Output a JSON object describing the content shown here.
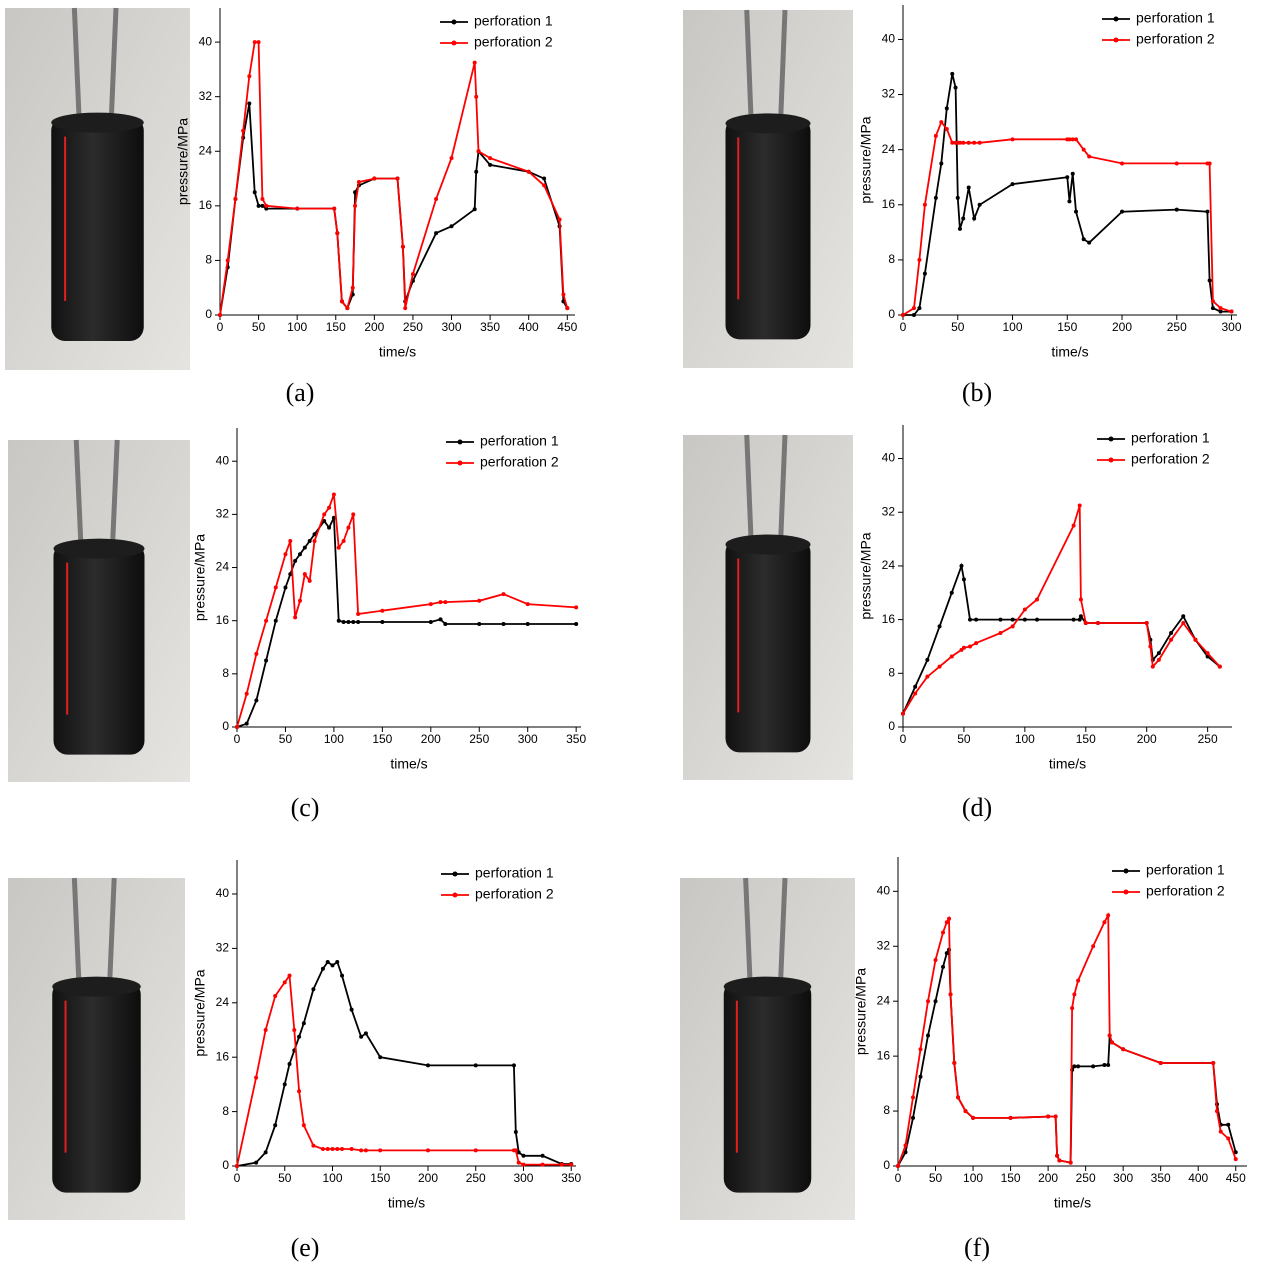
{
  "chart_data": [
    {
      "type": "line",
      "caption": "(a)",
      "x_label": "time/s",
      "y_label": "pressure/MPa",
      "legend": "upper right",
      "xlim": [
        0,
        460
      ],
      "ylim": [
        0,
        45
      ],
      "xticks": [
        0,
        50,
        100,
        150,
        200,
        250,
        300,
        350,
        400,
        450
      ],
      "yticks": [
        0,
        8,
        16,
        24,
        32,
        40
      ],
      "x": [
        0,
        10,
        20,
        30,
        38,
        45,
        50,
        55,
        60,
        100,
        148,
        152,
        158,
        165,
        172,
        175,
        180,
        200,
        230,
        237,
        240,
        250,
        280,
        300,
        330,
        332,
        335,
        350,
        400,
        420,
        440,
        445,
        450
      ],
      "series": [
        {
          "name": "perforation 1",
          "color": "#000000",
          "values": [
            0,
            7,
            17,
            26,
            31,
            18,
            16,
            16,
            15.6,
            15.6,
            15.6,
            12,
            2,
            1,
            3,
            18,
            19,
            20,
            20,
            10,
            2,
            5,
            12,
            13,
            15.5,
            21,
            24,
            22,
            21,
            20,
            13,
            2,
            1
          ]
        },
        {
          "name": "perforation 2",
          "color": "#ff0000",
          "values": [
            0,
            8,
            17,
            27,
            35,
            40,
            40,
            17,
            16,
            15.6,
            15.6,
            12,
            2,
            1,
            4,
            16,
            19.5,
            20,
            20,
            10,
            1,
            6,
            17,
            23,
            37,
            32,
            24,
            23,
            21,
            19,
            14,
            3,
            1
          ]
        }
      ]
    },
    {
      "type": "line",
      "caption": "(b)",
      "x_label": "time/s",
      "y_label": "pressure/MPa",
      "legend": "upper right",
      "xlim": [
        0,
        305
      ],
      "ylim": [
        0,
        45
      ],
      "xticks": [
        0,
        50,
        100,
        150,
        200,
        250,
        300
      ],
      "yticks": [
        0,
        8,
        16,
        24,
        32,
        40
      ],
      "x": [
        0,
        10,
        15,
        20,
        30,
        35,
        40,
        45,
        48,
        50,
        52,
        55,
        60,
        65,
        70,
        100,
        150,
        152,
        155,
        158,
        165,
        170,
        200,
        250,
        278,
        280,
        283,
        290,
        300
      ],
      "series": [
        {
          "name": "perforation 1",
          "color": "#000000",
          "values": [
            0,
            0,
            1,
            6,
            17,
            22,
            30,
            35,
            33,
            17,
            12.5,
            14,
            18.5,
            14,
            16,
            19,
            20,
            16.5,
            20.5,
            15,
            11,
            10.5,
            15,
            15.3,
            15,
            5,
            1,
            0.5,
            0.5
          ]
        },
        {
          "name": "perforation 2",
          "color": "#ff0000",
          "values": [
            0,
            1,
            8,
            16,
            26,
            28,
            27,
            25,
            25,
            25,
            25,
            25,
            25,
            25,
            25,
            25.5,
            25.5,
            25.5,
            25.5,
            25.5,
            24,
            23,
            22,
            22,
            22,
            22,
            2,
            1,
            0.5
          ]
        }
      ]
    },
    {
      "type": "line",
      "caption": "(c)",
      "x_label": "time/s",
      "y_label": "pressure/MPa",
      "legend": "upper right",
      "xlim": [
        0,
        355
      ],
      "ylim": [
        0,
        45
      ],
      "xticks": [
        0,
        50,
        100,
        150,
        200,
        250,
        300,
        350
      ],
      "yticks": [
        0,
        8,
        16,
        24,
        32,
        40
      ],
      "x": [
        0,
        10,
        20,
        30,
        40,
        50,
        55,
        60,
        65,
        70,
        75,
        80,
        90,
        95,
        100,
        105,
        110,
        115,
        120,
        125,
        150,
        200,
        210,
        215,
        250,
        275,
        300,
        350
      ],
      "series": [
        {
          "name": "perforation 1",
          "color": "#000000",
          "values": [
            0,
            0.5,
            4,
            10,
            16,
            21,
            23,
            25,
            26,
            27,
            28,
            29,
            31,
            30,
            31.5,
            16,
            15.8,
            15.8,
            15.8,
            15.8,
            15.8,
            15.8,
            16.2,
            15.5,
            15.5,
            15.5,
            15.5,
            15.5
          ]
        },
        {
          "name": "perforation 2",
          "color": "#ff0000",
          "values": [
            0,
            5,
            11,
            16,
            21,
            26,
            28,
            16.5,
            19,
            23,
            22,
            28,
            32,
            33,
            35,
            27,
            28,
            30,
            32,
            17,
            17.5,
            18.5,
            18.8,
            18.8,
            19,
            20,
            18.5,
            18
          ]
        }
      ]
    },
    {
      "type": "line",
      "caption": "(d)",
      "x_label": "time/s",
      "y_label": "pressure/MPa",
      "legend": "upper right",
      "xlim": [
        0,
        270
      ],
      "ylim": [
        0,
        45
      ],
      "xticks": [
        0,
        50,
        100,
        150,
        200,
        250
      ],
      "yticks": [
        0,
        8,
        16,
        24,
        32,
        40
      ],
      "x": [
        0,
        10,
        20,
        30,
        40,
        48,
        50,
        55,
        60,
        80,
        90,
        100,
        110,
        140,
        145,
        146,
        150,
        160,
        200,
        203,
        205,
        210,
        220,
        230,
        240,
        250,
        260
      ],
      "series": [
        {
          "name": "perforation 1",
          "color": "#000000",
          "values": [
            2,
            6,
            10,
            15,
            20,
            24,
            22,
            16,
            16,
            16,
            16,
            16,
            16,
            16,
            16,
            16.5,
            15.5,
            15.5,
            15.5,
            13,
            10,
            11,
            14,
            16.5,
            13,
            10.5,
            9
          ]
        },
        {
          "name": "perforation 2",
          "color": "#ff0000",
          "values": [
            2,
            5,
            7.5,
            9,
            10.5,
            11.5,
            11.8,
            12,
            12.5,
            14,
            15,
            17.5,
            19,
            30,
            33,
            19,
            15.5,
            15.5,
            15.5,
            12,
            9,
            10,
            13,
            15.5,
            13,
            11,
            9
          ]
        }
      ]
    },
    {
      "type": "line",
      "caption": "(e)",
      "x_label": "time/s",
      "y_label": "pressure/MPa",
      "legend": "upper right",
      "xlim": [
        0,
        355
      ],
      "ylim": [
        0,
        45
      ],
      "xticks": [
        0,
        50,
        100,
        150,
        200,
        250,
        300,
        350
      ],
      "yticks": [
        0,
        8,
        16,
        24,
        32,
        40
      ],
      "x": [
        0,
        20,
        30,
        40,
        50,
        55,
        60,
        65,
        70,
        80,
        90,
        95,
        100,
        105,
        110,
        120,
        130,
        135,
        150,
        200,
        250,
        290,
        292,
        295,
        300,
        320,
        340,
        350
      ],
      "series": [
        {
          "name": "perforation 1",
          "color": "#000000",
          "values": [
            0,
            0.5,
            2,
            6,
            12,
            15,
            17,
            19,
            21,
            26,
            29,
            30,
            29.5,
            30,
            28,
            23,
            19,
            19.5,
            16,
            14.8,
            14.8,
            14.8,
            5,
            2,
            1.5,
            1.5,
            0.3,
            0.3
          ]
        },
        {
          "name": "perforation 2",
          "color": "#ff0000",
          "values": [
            0,
            13,
            20,
            25,
            27,
            28,
            20,
            11,
            6,
            3,
            2.5,
            2.5,
            2.5,
            2.5,
            2.5,
            2.5,
            2.3,
            2.3,
            2.3,
            2.3,
            2.3,
            2.3,
            2.3,
            0.5,
            0.2,
            0.2,
            0.2,
            0.2
          ]
        }
      ]
    },
    {
      "type": "line",
      "caption": "(f)",
      "x_label": "time/s",
      "y_label": "pressure/MPa",
      "legend": "upper right",
      "xlim": [
        0,
        465
      ],
      "ylim": [
        0,
        45
      ],
      "xticks": [
        0,
        50,
        100,
        150,
        200,
        250,
        300,
        350,
        400,
        450
      ],
      "yticks": [
        0,
        8,
        16,
        24,
        32,
        40
      ],
      "x": [
        0,
        10,
        20,
        30,
        40,
        50,
        60,
        65,
        68,
        70,
        75,
        80,
        90,
        100,
        150,
        200,
        210,
        212,
        215,
        230,
        232,
        235,
        240,
        260,
        275,
        280,
        282,
        285,
        300,
        350,
        420,
        425,
        430,
        440,
        450
      ],
      "series": [
        {
          "name": "perforation 1",
          "color": "#000000",
          "values": [
            0,
            2,
            7,
            13,
            19,
            24,
            29,
            31,
            31.5,
            25,
            15,
            10,
            8,
            7,
            7,
            7.2,
            7.2,
            1.5,
            0.8,
            0.5,
            14,
            14.5,
            14.5,
            14.5,
            14.7,
            14.7,
            19,
            18,
            17,
            15,
            15,
            9,
            6,
            6,
            2
          ]
        },
        {
          "name": "perforation 2",
          "color": "#ff0000",
          "values": [
            0,
            3,
            10,
            17,
            24,
            30,
            34,
            35.5,
            36,
            25,
            15,
            10,
            8,
            7,
            7,
            7.2,
            7.2,
            1.5,
            0.8,
            0.5,
            23,
            25,
            27,
            32,
            35.5,
            36.5,
            19,
            18,
            17,
            15,
            15,
            8,
            5,
            4,
            1
          ]
        }
      ]
    }
  ]
}
